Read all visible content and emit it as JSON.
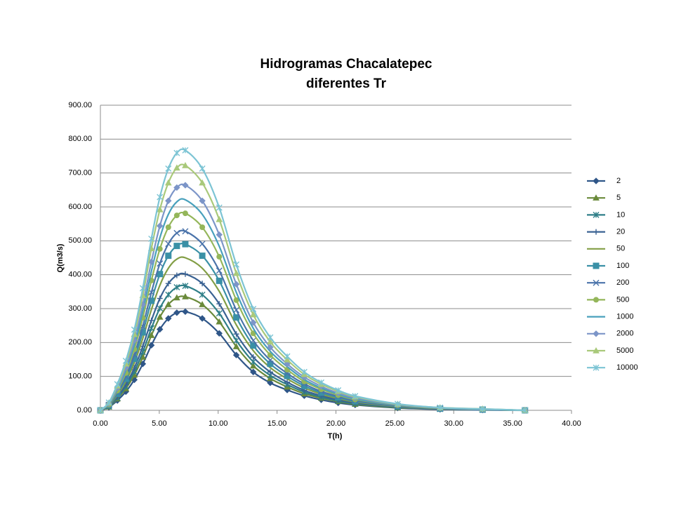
{
  "chart_data": {
    "type": "scatter-smooth",
    "title": [
      "Hidrogramas Chacalatepec",
      "diferentes Tr"
    ],
    "x_label": "T(h)",
    "y_label": "Q(m3/s)",
    "x": [
      0,
      0.72,
      1.44,
      2.16,
      2.88,
      3.6,
      4.33,
      5.05,
      5.77,
      6.49,
      7.21,
      8.65,
      10.09,
      11.54,
      12.98,
      14.42,
      15.86,
      17.31,
      18.75,
      20.19,
      21.63,
      25.24,
      28.84,
      32.45,
      36.05
    ],
    "xlim": [
      0,
      40
    ],
    "xticks": [
      {
        "value": 0,
        "label": "0.00"
      },
      {
        "value": 5,
        "label": "5.00"
      },
      {
        "value": 10,
        "label": "10.00"
      },
      {
        "value": 15,
        "label": "15.00"
      },
      {
        "value": 20,
        "label": "20.00"
      },
      {
        "value": 25,
        "label": "25.00"
      },
      {
        "value": 30,
        "label": "30.00"
      },
      {
        "value": 35,
        "label": "35.00"
      },
      {
        "value": 40,
        "label": "40.00"
      }
    ],
    "ylim": [
      0,
      900
    ],
    "yticks": [
      {
        "value": 0,
        "label": "0.00"
      },
      {
        "value": 100,
        "label": "100.00"
      },
      {
        "value": 200,
        "label": "200.00"
      },
      {
        "value": 300,
        "label": "300.00"
      },
      {
        "value": 400,
        "label": "400.00"
      },
      {
        "value": 500,
        "label": "500.00"
      },
      {
        "value": 600,
        "label": "600.00"
      },
      {
        "value": 700,
        "label": "700.00"
      },
      {
        "value": 800,
        "label": "800.00"
      },
      {
        "value": 900,
        "label": "900.00"
      }
    ],
    "grid": true,
    "legend": "right",
    "series": [
      {
        "name": "2",
        "color": "#2f5688",
        "marker": "diamond",
        "values": [
          0,
          9,
          29,
          55,
          90,
          137,
          192,
          239,
          271,
          288,
          291,
          271,
          227,
          163,
          113,
          81,
          60,
          43,
          31,
          22,
          16,
          7,
          3,
          1,
          0
        ]
      },
      {
        "name": "5",
        "color": "#6a8a3a",
        "marker": "triangle",
        "values": [
          0,
          10,
          34,
          64,
          104,
          157,
          221,
          275,
          312,
          332,
          335,
          312,
          261,
          188,
          131,
          94,
          69,
          49,
          36,
          26,
          18,
          8,
          4,
          2,
          0
        ]
      },
      {
        "name": "10",
        "color": "#2f7f88",
        "marker": "asterisk",
        "values": [
          0,
          11,
          37,
          70,
          114,
          172,
          242,
          301,
          341,
          363,
          367,
          341,
          286,
          206,
          143,
          103,
          76,
          54,
          39,
          28,
          20,
          9,
          4,
          2,
          0
        ]
      },
      {
        "name": "20",
        "color": "#3a6293",
        "marker": "plus",
        "values": [
          0,
          12,
          40,
          76,
          125,
          189,
          265,
          330,
          374,
          398,
          402,
          374,
          314,
          225,
          157,
          113,
          83,
          59,
          43,
          31,
          22,
          10,
          4,
          2,
          0
        ]
      },
      {
        "name": "50",
        "color": "#829e45",
        "marker": "none",
        "values": [
          0,
          14,
          45,
          86,
          140,
          212,
          297,
          369,
          419,
          446,
          450,
          419,
          351,
          252,
          176,
          126,
          93,
          66,
          48,
          35,
          25,
          11,
          5,
          2,
          0
        ]
      },
      {
        "name": "100",
        "color": "#3a90a6",
        "marker": "square",
        "values": [
          0,
          15,
          49,
          93,
          152,
          230,
          323,
          402,
          456,
          485,
          490,
          456,
          382,
          274,
          191,
          137,
          101,
          72,
          52,
          38,
          27,
          12,
          5,
          2,
          0
        ]
      },
      {
        "name": "200",
        "color": "#4a73aa",
        "marker": "x",
        "values": [
          0,
          16,
          53,
          100,
          164,
          248,
          348,
          433,
          491,
          523,
          528,
          491,
          412,
          296,
          206,
          148,
          109,
          78,
          56,
          41,
          29,
          13,
          6,
          3,
          0
        ]
      },
      {
        "name": "500",
        "color": "#94b65a",
        "marker": "circle",
        "values": [
          0,
          17,
          58,
          110,
          180,
          273,
          383,
          476,
          540,
          575,
          581,
          540,
          453,
          325,
          227,
          163,
          120,
          85,
          62,
          45,
          32,
          15,
          6,
          3,
          0
        ]
      },
      {
        "name": "1000",
        "color": "#48a0bc",
        "marker": "none",
        "values": [
          0,
          19,
          62,
          118,
          193,
          292,
          410,
          509,
          578,
          615,
          621,
          578,
          484,
          348,
          242,
          174,
          129,
          91,
          66,
          48,
          34,
          16,
          7,
          3,
          0
        ]
      },
      {
        "name": "2000",
        "color": "#7c95c8",
        "marker": "diamond",
        "values": [
          0,
          20,
          66,
          126,
          206,
          312,
          438,
          544,
          618,
          657,
          664,
          618,
          518,
          372,
          259,
          186,
          137,
          98,
          71,
          51,
          37,
          17,
          7,
          3,
          0
        ]
      },
      {
        "name": "5000",
        "color": "#a9c97a",
        "marker": "triangle",
        "values": [
          0,
          22,
          72,
          137,
          224,
          339,
          477,
          592,
          671,
          715,
          722,
          671,
          563,
          404,
          282,
          202,
          149,
          106,
          77,
          56,
          40,
          18,
          8,
          4,
          0
        ]
      },
      {
        "name": "10000",
        "color": "#7cc4d4",
        "marker": "asterisk",
        "values": [
          0,
          23,
          77,
          146,
          238,
          360,
          506,
          629,
          713,
          759,
          767,
          713,
          598,
          430,
          299,
          215,
          159,
          113,
          82,
          59,
          42,
          19,
          8,
          4,
          0
        ]
      }
    ]
  }
}
